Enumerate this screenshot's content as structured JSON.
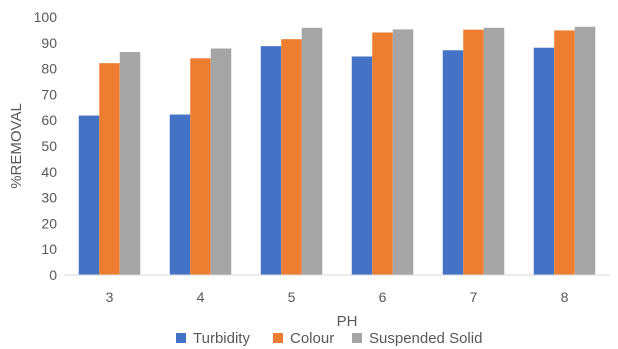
{
  "chart_data": {
    "type": "bar",
    "title": "",
    "xlabel": "PH",
    "ylabel": "%REMOVAL",
    "categories": [
      "3",
      "4",
      "5",
      "6",
      "7",
      "8"
    ],
    "ylim": [
      0,
      100
    ],
    "yticks": [
      0,
      10,
      20,
      30,
      40,
      50,
      60,
      70,
      80,
      90,
      100
    ],
    "grid": false,
    "legend_position": "bottom",
    "series": [
      {
        "name": "Turbidity",
        "color": "#4472C4",
        "values": [
          61.8,
          62.2,
          88.7,
          84.7,
          87.1,
          88.1
        ]
      },
      {
        "name": "Colour",
        "color": "#ED7D31",
        "values": [
          82.1,
          84.0,
          91.4,
          94.0,
          95.1,
          94.8
        ]
      },
      {
        "name": "Suspended Solid",
        "color": "#A5A5A5",
        "values": [
          86.4,
          87.8,
          95.8,
          95.2,
          95.8,
          96.2
        ]
      }
    ]
  }
}
